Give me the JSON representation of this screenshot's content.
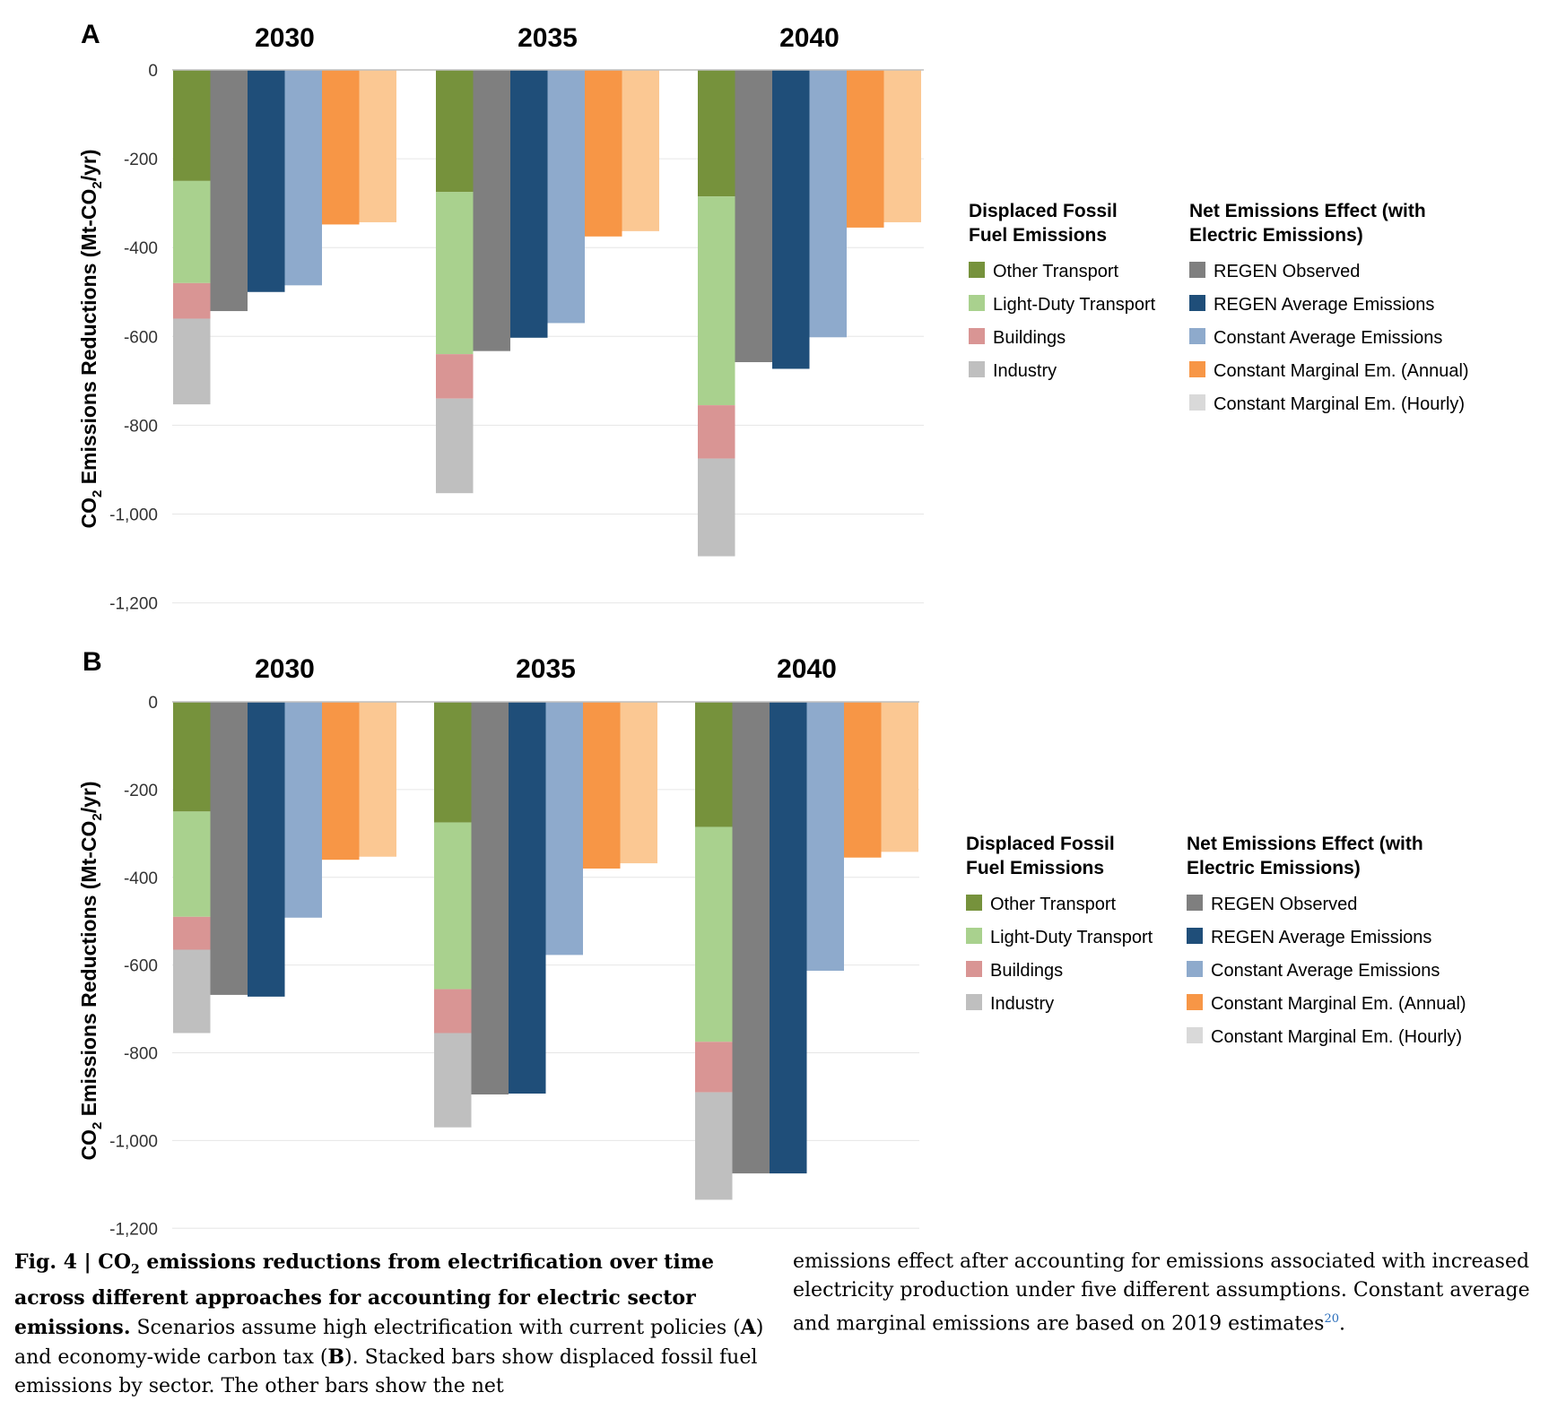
{
  "chart_data": [
    {
      "type": "bar",
      "panel": "A",
      "groups": [
        "2030",
        "2035",
        "2040"
      ],
      "ylabel": "CO2 Emissions Reductions (Mt-CO2/yr)",
      "ylim": [
        -1200,
        0
      ],
      "yticks": [
        0,
        -200,
        -400,
        -600,
        -800,
        -1000,
        -1200
      ],
      "ytick_labels": [
        "0",
        "-200",
        "-400",
        "-600",
        "-800",
        "-1,000",
        "-1,200"
      ],
      "grid": true,
      "stacked_series": [
        {
          "name": "Other Transport",
          "values": [
            -250,
            -275,
            -285
          ]
        },
        {
          "name": "Light-Duty Transport",
          "values": [
            -230,
            -365,
            -470
          ]
        },
        {
          "name": "Buildings",
          "values": [
            -80,
            -100,
            -120
          ]
        },
        {
          "name": "Industry",
          "values": [
            -193,
            -213,
            -220
          ]
        }
      ],
      "series": [
        {
          "name": "REGEN Observed",
          "values": [
            -543,
            -633,
            -658
          ]
        },
        {
          "name": "REGEN Average Emissions",
          "values": [
            -500,
            -603,
            -673
          ]
        },
        {
          "name": "Constant Average Emissions",
          "values": [
            -485,
            -570,
            -602
          ]
        },
        {
          "name": "Constant Marginal Em. (Annual)",
          "values": [
            -348,
            -375,
            -355
          ]
        },
        {
          "name": "Constant Marginal Em. (Hourly)",
          "values": [
            -343,
            -363,
            -343
          ]
        }
      ]
    },
    {
      "type": "bar",
      "panel": "B",
      "groups": [
        "2030",
        "2035",
        "2040"
      ],
      "ylabel": "CO2 Emissions Reductions (Mt-CO2/yr)",
      "ylim": [
        -1200,
        0
      ],
      "yticks": [
        0,
        -200,
        -400,
        -600,
        -800,
        -1000,
        -1200
      ],
      "ytick_labels": [
        "0",
        "-200",
        "-400",
        "-600",
        "-800",
        "-1,000",
        "-1,200"
      ],
      "grid": true,
      "stacked_series": [
        {
          "name": "Other Transport",
          "values": [
            -250,
            -275,
            -285
          ]
        },
        {
          "name": "Light-Duty Transport",
          "values": [
            -240,
            -380,
            -490
          ]
        },
        {
          "name": "Buildings",
          "values": [
            -75,
            -100,
            -115
          ]
        },
        {
          "name": "Industry",
          "values": [
            -190,
            -215,
            -245
          ]
        }
      ],
      "series": [
        {
          "name": "REGEN Observed",
          "values": [
            -668,
            -895,
            -1075
          ]
        },
        {
          "name": "REGEN Average Emissions",
          "values": [
            -672,
            -893,
            -1075
          ]
        },
        {
          "name": "Constant Average Emissions",
          "values": [
            -492,
            -577,
            -613
          ]
        },
        {
          "name": "Constant Marginal Em. (Annual)",
          "values": [
            -360,
            -380,
            -355
          ]
        },
        {
          "name": "Constant Marginal Em. (Hourly)",
          "values": [
            -353,
            -368,
            -342
          ]
        }
      ]
    }
  ],
  "colors": {
    "Other Transport": "#76923c",
    "Light-Duty Transport": "#a9d18e",
    "Buildings": "#d99594",
    "Industry": "#bfbfbf",
    "REGEN Observed": "#7f7f7f",
    "REGEN Average Emissions": "#1f4e79",
    "Constant Average Emissions": "#8eaacc",
    "Constant Marginal Em. (Annual)": "#f79646",
    "Constant Marginal Em. (Hourly)": "#fbc893",
    "Constant Marginal Em. (Hourly) legend": "#d9d9d9"
  },
  "panels": [
    {
      "letter": "A",
      "legend": {
        "left_title_line1": "Displaced Fossil",
        "left_title_line2": "Fuel Emissions",
        "right_title_line1": "Net Emissions Effect (with",
        "right_title_line2": "Electric Emissions)",
        "left_items": [
          "Other Transport",
          "Light-Duty Transport",
          "Buildings",
          "Industry"
        ],
        "right_items": [
          "REGEN Observed",
          "REGEN Average Emissions",
          "Constant Average Emissions",
          "Constant Marginal Em. (Annual)",
          "Constant Marginal Em. (Hourly)"
        ]
      }
    },
    {
      "letter": "B",
      "legend": {
        "left_title_line1": "Displaced Fossil",
        "left_title_line2": "Fuel Emissions",
        "right_title_line1": "Net Emissions Effect (with",
        "right_title_line2": "Electric Emissions)",
        "left_items": [
          "Other Transport",
          "Light-Duty Transport",
          "Buildings",
          "Industry"
        ],
        "right_items": [
          "REGEN Observed",
          "REGEN Average Emissions",
          "Constant Average Emissions",
          "Constant Marginal Em. (Annual)",
          "Constant Marginal Em. (Hourly)"
        ]
      }
    }
  ],
  "ylabel_parts": {
    "co": "CO",
    "sub2": "2",
    "rest_a": " Emissions Reductions (Mt-CO",
    "rest_b": "/yr)"
  },
  "caption": {
    "fig_label": "Fig. 4 | CO",
    "fig_sub": "2",
    "bold_title": " emissions reductions from electrification over time across different approaches for accounting for electric sector emissions.",
    "text1": " Scenarios assume high electrification with current policies (",
    "A": "A",
    "text2": ") and economy-wide carbon tax (",
    "B": "B",
    "text3": "). Stacked bars show displaced fossil fuel emissions by sector. The other bars show the net",
    "right_text": "emissions effect after accounting for emissions associated with increased electricity production under five different assumptions. Constant average and marginal emissions are based on 2019 estimates",
    "ref": "20",
    "end": "."
  }
}
